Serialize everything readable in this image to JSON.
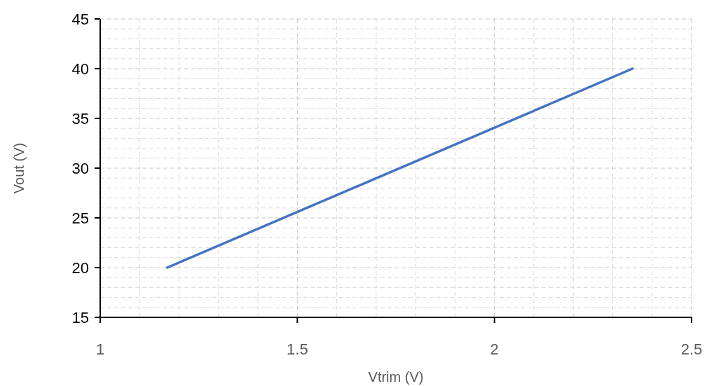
{
  "chart_data": {
    "type": "line",
    "xlabel": "Vtrim (V)",
    "ylabel": "Vout (V)",
    "x": [
      1.17,
      2.35
    ],
    "series": [
      {
        "color": "#4472c4",
        "values": [
          20,
          40
        ]
      }
    ],
    "xlim": [
      1,
      2.5
    ],
    "xticks": [
      1,
      1.5,
      2,
      2.5
    ],
    "ylim": [
      15,
      45
    ],
    "yticks": [
      15,
      20,
      25,
      30,
      35,
      40,
      45
    ],
    "grid": true,
    "marker": "none",
    "line_style": "solid"
  }
}
